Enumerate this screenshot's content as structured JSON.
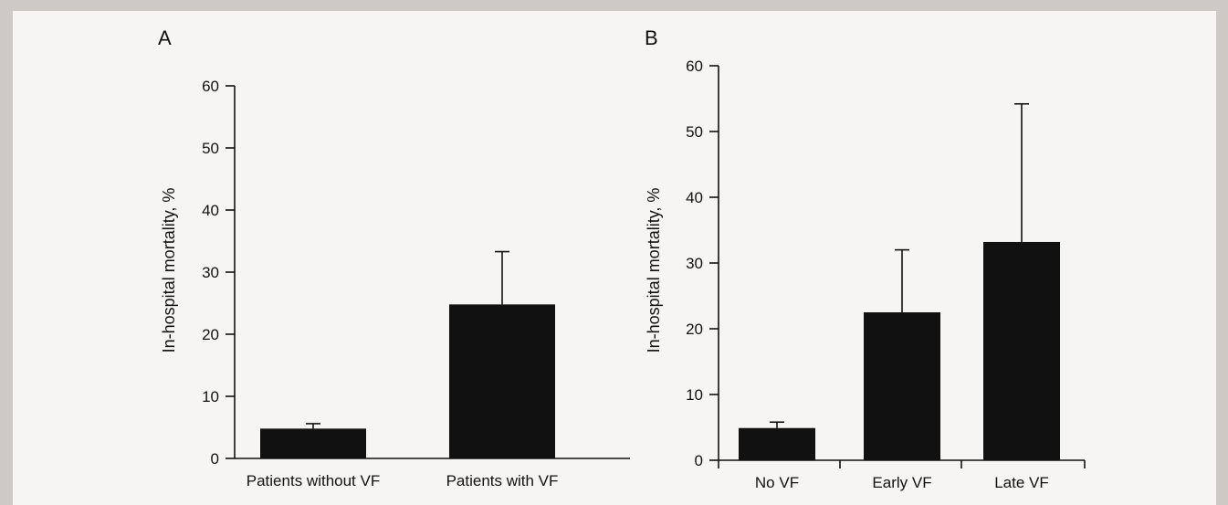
{
  "chart_data": [
    {
      "type": "bar",
      "panel_label": "A",
      "ylabel": "In-hospital mortality, %",
      "ylim": [
        0,
        60
      ],
      "yticks": [
        0,
        10,
        20,
        30,
        40,
        50,
        60
      ],
      "categories": [
        "Patients without VF",
        "Patients with VF"
      ],
      "values": [
        4.8,
        24.8
      ],
      "error_upper": [
        5.6,
        33.3
      ],
      "bar_color": "#111111"
    },
    {
      "type": "bar",
      "panel_label": "B",
      "ylabel": "In-hospital mortality, %",
      "ylim": [
        0,
        60
      ],
      "yticks": [
        0,
        10,
        20,
        30,
        40,
        50,
        60
      ],
      "categories": [
        "No VF",
        "Early VF",
        "Late VF"
      ],
      "values": [
        4.9,
        22.5,
        33.2
      ],
      "error_upper": [
        5.8,
        32.0,
        54.2
      ],
      "bar_color": "#111111"
    }
  ]
}
